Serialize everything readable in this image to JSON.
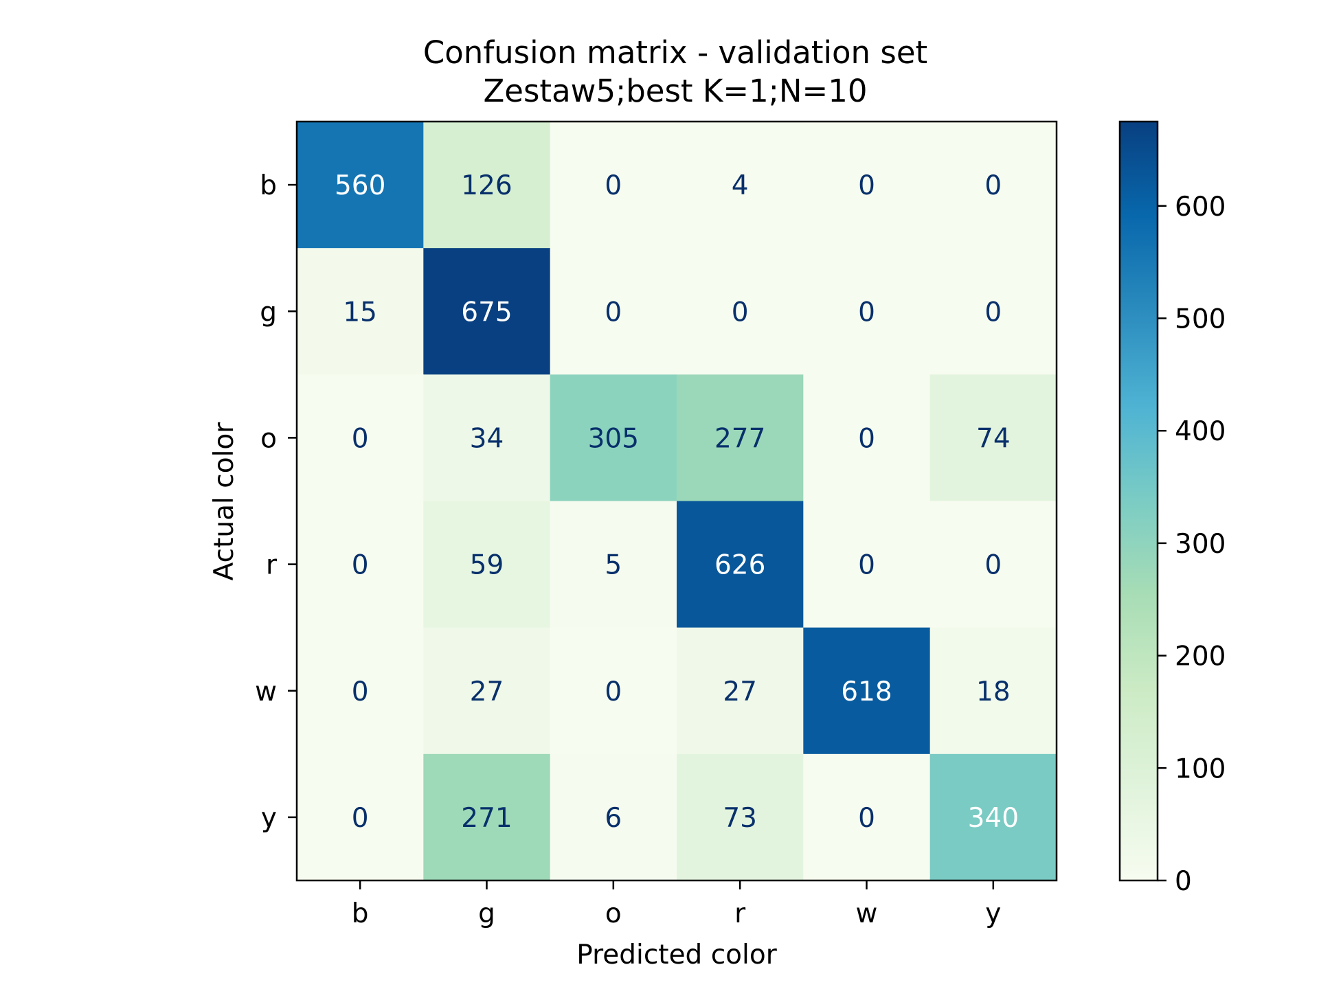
{
  "chart_data": {
    "type": "heatmap",
    "title": "Confusion matrix - validation set",
    "subtitle": "Zestaw5;best K=1;N=10",
    "xlabel": "Predicted color",
    "ylabel": "Actual color",
    "x_categories": [
      "b",
      "g",
      "o",
      "r",
      "w",
      "y"
    ],
    "y_categories": [
      "b",
      "g",
      "o",
      "r",
      "w",
      "y"
    ],
    "matrix": [
      [
        560,
        126,
        0,
        4,
        0,
        0
      ],
      [
        15,
        675,
        0,
        0,
        0,
        0
      ],
      [
        0,
        34,
        305,
        277,
        0,
        74
      ],
      [
        0,
        59,
        5,
        626,
        0,
        0
      ],
      [
        0,
        27,
        0,
        27,
        618,
        18
      ],
      [
        0,
        271,
        6,
        73,
        0,
        340
      ]
    ],
    "colorbar": {
      "range": [
        0,
        675
      ],
      "ticks": [
        0,
        100,
        200,
        300,
        400,
        500,
        600
      ],
      "colormap": "GnBu"
    },
    "text_colors": {
      "light": "#ffffff",
      "dark": "#08306b"
    }
  }
}
